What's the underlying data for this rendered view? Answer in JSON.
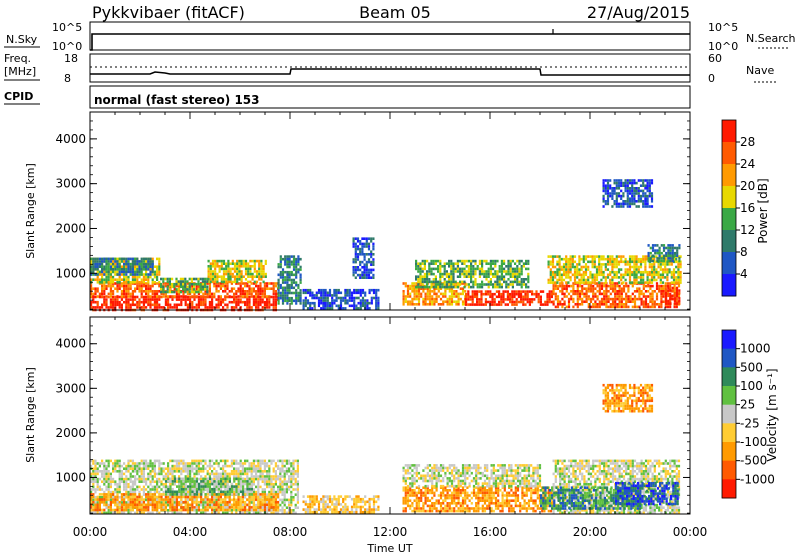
{
  "header": {
    "station": "Pykkvibaer (fitACF)",
    "beam": "Beam 05",
    "date": "27/Aug/2015"
  },
  "strips": {
    "nsky_label": "N.Sky",
    "nsearch_label": "N.Search",
    "nsky_ticks": [
      "10^5",
      "10^0"
    ],
    "nsearch_ticks": [
      "10^5",
      "10^0"
    ],
    "freq_label_top": "Freq.",
    "freq_label_bottom": "[MHz]",
    "freq_ticks": [
      "18",
      "8"
    ],
    "nave_label": "Nave",
    "nave_ticks": [
      "60",
      "0"
    ],
    "cpid_label": "CPID",
    "cpid_text": "normal (fast stereo) 153"
  },
  "chart_data": [
    {
      "type": "heatmap",
      "name": "power",
      "ylabel": "Slant Range [km]",
      "xlabel": "",
      "yticks": [
        "1000",
        "2000",
        "3000",
        "4000"
      ],
      "ylim": [
        180,
        4600
      ],
      "xticks": [
        "00:00",
        "04:00",
        "08:00",
        "12:00",
        "16:00",
        "20:00",
        "00:00"
      ],
      "xlim_hours": [
        0,
        24
      ],
      "colorbar": {
        "label": "Power [dB]",
        "tick_labels": [
          "4",
          "8",
          "12",
          "16",
          "20",
          "24",
          "28"
        ],
        "colors": [
          "#1a1aff",
          "#1f57c4",
          "#2f7a6a",
          "#3aa845",
          "#e8d800",
          "#ff9a00",
          "#ff5a00",
          "#ff1a00"
        ]
      },
      "regions": [
        {
          "x0": 0.0,
          "x1": 7.5,
          "y0": 200,
          "y1": 500,
          "level": 7
        },
        {
          "x0": 0.0,
          "x1": 7.5,
          "y0": 500,
          "y1": 800,
          "level": 6
        },
        {
          "x0": 0.0,
          "x1": 2.8,
          "y0": 800,
          "y1": 1350,
          "level": 4
        },
        {
          "x0": 4.7,
          "x1": 7.0,
          "y0": 800,
          "y1": 1300,
          "level": 4
        },
        {
          "x0": 0.0,
          "x1": 2.5,
          "y0": 1000,
          "y1": 1350,
          "level": 2
        },
        {
          "x0": 2.8,
          "x1": 4.7,
          "y0": 600,
          "y1": 900,
          "level": 3
        },
        {
          "x0": 7.5,
          "x1": 8.4,
          "y0": 300,
          "y1": 1400,
          "level": 2
        },
        {
          "x0": 8.5,
          "x1": 11.5,
          "y0": 200,
          "y1": 650,
          "level": 1
        },
        {
          "x0": 10.5,
          "x1": 11.3,
          "y0": 900,
          "y1": 1800,
          "level": 1
        },
        {
          "x0": 12.5,
          "x1": 15.0,
          "y0": 300,
          "y1": 800,
          "level": 5
        },
        {
          "x0": 15.0,
          "x1": 18.5,
          "y0": 280,
          "y1": 620,
          "level": 7
        },
        {
          "x0": 13.0,
          "x1": 17.5,
          "y0": 700,
          "y1": 1300,
          "level": 3
        },
        {
          "x0": 18.5,
          "x1": 23.6,
          "y0": 250,
          "y1": 800,
          "level": 6
        },
        {
          "x0": 18.3,
          "x1": 23.6,
          "y0": 800,
          "y1": 1400,
          "level": 4
        },
        {
          "x0": 22.3,
          "x1": 23.6,
          "y0": 1300,
          "y1": 1650,
          "level": 2
        },
        {
          "x0": 23.0,
          "x1": 23.6,
          "y0": 300,
          "y1": 700,
          "level": 7
        },
        {
          "x0": 20.5,
          "x1": 22.5,
          "y0": 2500,
          "y1": 3100,
          "level": 1
        }
      ]
    },
    {
      "type": "heatmap",
      "name": "velocity",
      "ylabel": "Slant Range [km]",
      "xlabel": "Time UT",
      "yticks": [
        "1000",
        "2000",
        "3000",
        "4000"
      ],
      "ylim": [
        180,
        4600
      ],
      "xticks": [
        "00:00",
        "04:00",
        "08:00",
        "12:00",
        "16:00",
        "20:00",
        "00:00"
      ],
      "xlim_hours": [
        0,
        24
      ],
      "colorbar": {
        "label": "Velocity [m s⁻¹]",
        "tick_labels": [
          "-1000",
          "-500",
          "-100",
          "-25",
          "25",
          "100",
          "500",
          "1000"
        ],
        "colors": [
          "#ff1a00",
          "#ff5a00",
          "#ff9a00",
          "#ffcc33",
          "#c8c8c8",
          "#60c040",
          "#2f8a5a",
          "#1f57c4",
          "#1a1aff"
        ]
      },
      "regions": [
        {
          "x0": 0.0,
          "x1": 8.3,
          "y0": 200,
          "y1": 1400,
          "level": 4
        },
        {
          "x0": 0.0,
          "x1": 7.5,
          "y0": 250,
          "y1": 650,
          "level": 2
        },
        {
          "x0": 3.0,
          "x1": 6.5,
          "y0": 600,
          "y1": 1000,
          "level": 5
        },
        {
          "x0": 8.5,
          "x1": 11.5,
          "y0": 200,
          "y1": 600,
          "level": 3
        },
        {
          "x0": 12.5,
          "x1": 18.5,
          "y0": 250,
          "y1": 800,
          "level": 2
        },
        {
          "x0": 12.5,
          "x1": 18.0,
          "y0": 800,
          "y1": 1300,
          "level": 4
        },
        {
          "x0": 18.5,
          "x1": 23.6,
          "y0": 200,
          "y1": 1400,
          "level": 4
        },
        {
          "x0": 18.0,
          "x1": 22.0,
          "y0": 300,
          "y1": 800,
          "level": 6
        },
        {
          "x0": 21.0,
          "x1": 23.5,
          "y0": 400,
          "y1": 900,
          "level": 7
        },
        {
          "x0": 20.5,
          "x1": 22.5,
          "y0": 2500,
          "y1": 3100,
          "level": 2
        }
      ]
    }
  ]
}
